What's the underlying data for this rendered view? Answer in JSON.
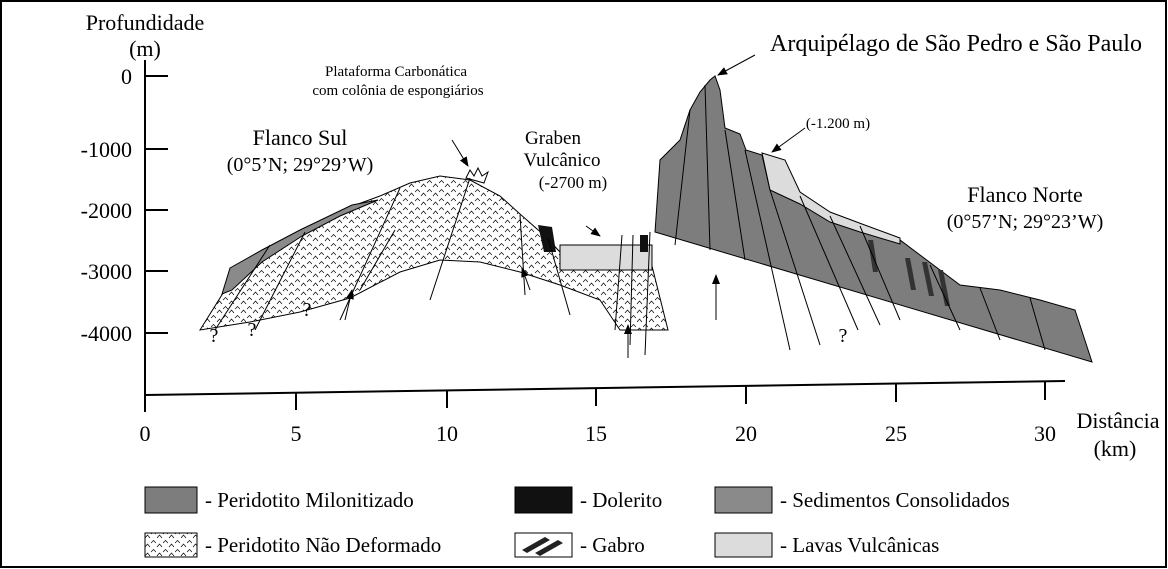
{
  "axes": {
    "y_title": [
      "Profundidade",
      "(m)"
    ],
    "y_ticks": [
      "0",
      "-1000",
      "-2000",
      "-3000",
      "-4000"
    ],
    "x_title": [
      "Distância",
      "(km)"
    ],
    "x_ticks": [
      "0",
      "5",
      "10",
      "15",
      "20",
      "25",
      "30"
    ]
  },
  "labels": {
    "archipelago": "Arquipélago de São Pedro e São Paulo",
    "platform": [
      "Plataforma Carbonática",
      "com colônia de espongiários"
    ],
    "south_flank": [
      "Flanco Sul",
      "(0°5’N; 29°29’W)"
    ],
    "graben": [
      "Graben",
      "Vulcânico",
      "(-2700 m)"
    ],
    "depth_note": "(-1.200 m)",
    "north_flank": [
      "Flanco Norte",
      "(0°57’N; 29°23’W)"
    ],
    "unknown": "?"
  },
  "legend": [
    "- Peridotito Milonitizado",
    "- Dolerito",
    "- Sedimentos Consolidados",
    "- Peridotito Não Deformado",
    "- Gabro",
    "- Lavas Vulcânicas"
  ]
}
